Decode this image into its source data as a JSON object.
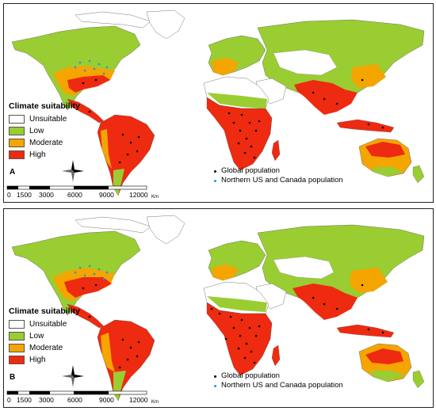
{
  "colors": {
    "unsuitable": "#ffffff",
    "low": "#9acd32",
    "moderate": "#f5a500",
    "high": "#ee2a10",
    "global_population": "#000000",
    "northern_population": "#1a9bd6"
  },
  "panels": [
    {
      "label": "A",
      "legend_title": "Climate suitability",
      "legend_items": [
        "Unsuitable",
        "Low",
        "Moderate",
        "High"
      ],
      "population_legend": [
        "Global population",
        "Northern US and Canada population"
      ],
      "scale_ticks": [
        "0",
        "1500",
        "3000",
        "6000",
        "9000",
        "12000"
      ],
      "scale_unit": "Km"
    },
    {
      "label": "B",
      "legend_title": "Climate suitability",
      "legend_items": [
        "Unsuitable",
        "Low",
        "Moderate",
        "High"
      ],
      "population_legend": [
        "Global population",
        "Northern US and Canada population"
      ],
      "scale_ticks": [
        "0",
        "1500",
        "3000",
        "6000",
        "9000",
        "12000"
      ],
      "scale_unit": "Km"
    }
  ]
}
